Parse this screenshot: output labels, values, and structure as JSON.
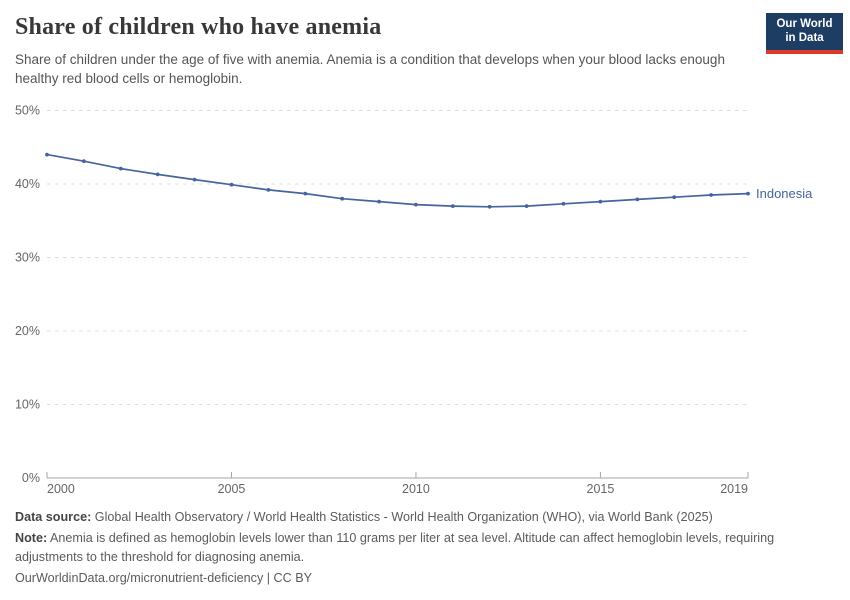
{
  "header": {
    "title": "Share of children who have anemia",
    "subtitle": "Share of children under the age of five with anemia. Anemia is a condition that develops when your blood lacks enough healthy red blood cells or hemoglobin."
  },
  "logo": {
    "line1": "Our World",
    "line2": "in Data"
  },
  "chart_data": {
    "type": "line",
    "title": "Share of children who have anemia",
    "x": [
      2000,
      2001,
      2002,
      2003,
      2004,
      2005,
      2006,
      2007,
      2008,
      2009,
      2010,
      2011,
      2012,
      2013,
      2014,
      2015,
      2016,
      2017,
      2018,
      2019
    ],
    "series": [
      {
        "name": "Indonesia",
        "color": "#4664A0",
        "values": [
          44.0,
          43.1,
          42.1,
          41.3,
          40.6,
          39.9,
          39.2,
          38.7,
          38.0,
          37.6,
          37.2,
          37.0,
          36.9,
          37.0,
          37.3,
          37.6,
          37.9,
          38.2,
          38.5,
          38.7
        ]
      }
    ],
    "xlabel": "",
    "ylabel": "",
    "ylim": [
      0,
      50
    ],
    "y_ticks": [
      0,
      10,
      20,
      30,
      40,
      50
    ],
    "y_tick_suffix": "%",
    "x_ticks": [
      2000,
      2005,
      2010,
      2015,
      2019
    ],
    "xlim": [
      2000,
      2019
    ],
    "grid": true,
    "grid_style": "dashed horizontal",
    "legend": "end-of-line entity label"
  },
  "footer": {
    "data_source_label": "Data source:",
    "data_source": " Global Health Observatory / World Health Statistics - World Health Organization (WHO), via World Bank (2025)",
    "note_label": "Note:",
    "note": " Anemia is defined as hemoglobin levels lower than 110 grams per liter at sea level. Altitude can affect hemoglobin levels, requiring adjustments to the threshold for diagnosing anemia.",
    "citation": "OurWorldinData.org/micronutrient-deficiency | CC BY"
  },
  "colors": {
    "line": "#4664A0",
    "logo_bg": "#1D3D63",
    "logo_stripe": "#D93A2B",
    "grid": "#DCDCDC",
    "axis": "#A5A5A5",
    "tick_label": "#666666",
    "title_text": "#383838",
    "subtitle_text": "#555555",
    "footer_text": "#5B5B5B"
  }
}
